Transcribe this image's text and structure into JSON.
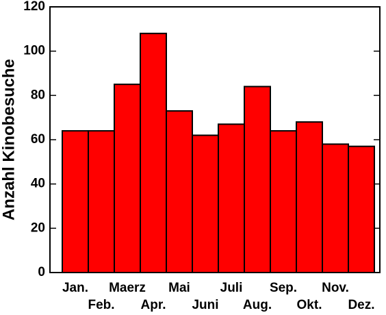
{
  "chart_data": {
    "type": "bar",
    "y_label": "Anzahl Kinobesuche",
    "categories": [
      "Jan.",
      "Feb.",
      "Maerz",
      "Apr.",
      "Mai",
      "Juni",
      "Juli",
      "Aug.",
      "Sep.",
      "Okt.",
      "Nov.",
      "Dez."
    ],
    "values": [
      64,
      64,
      85,
      108,
      73,
      62,
      67,
      84,
      64,
      68,
      58,
      57
    ],
    "color": "#ff0000",
    "ylim": [
      0,
      120
    ],
    "yticks": [
      0,
      20,
      40,
      60,
      80,
      100,
      120
    ]
  }
}
